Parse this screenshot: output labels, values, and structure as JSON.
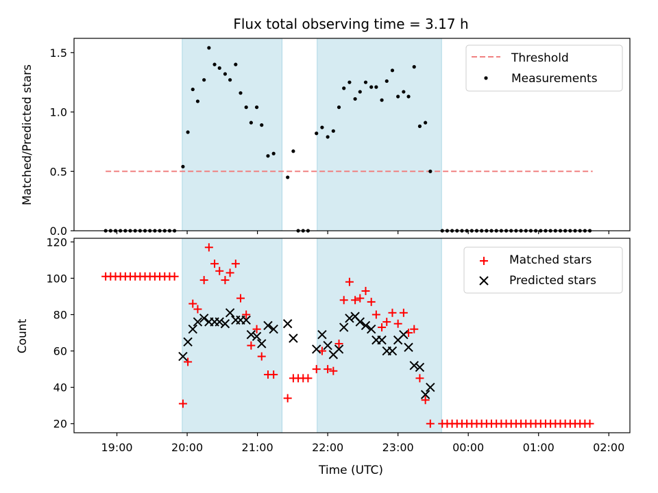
{
  "chart_data": {
    "title": "Flux total observing time = 3.17 h",
    "xlabel": "Time (UTC)",
    "x_unit": "hours since 18:00 UTC",
    "xlim": [
      0.39,
      8.3
    ],
    "xticks": [
      {
        "value": 1,
        "label": "19:00"
      },
      {
        "value": 2,
        "label": "20:00"
      },
      {
        "value": 3,
        "label": "21:00"
      },
      {
        "value": 4,
        "label": "22:00"
      },
      {
        "value": 5,
        "label": "23:00"
      },
      {
        "value": 6,
        "label": "00:00"
      },
      {
        "value": 7,
        "label": "01:00"
      },
      {
        "value": 8,
        "label": "02:00"
      }
    ],
    "shaded_intervals": [
      [
        1.93,
        3.35
      ],
      [
        3.85,
        5.62
      ]
    ],
    "shade_color": "#add8e6",
    "top": {
      "type": "scatter",
      "ylabel": "Matched/Predicted stars",
      "ylim": [
        0,
        1.62
      ],
      "yticks": [
        {
          "value": 0.0,
          "label": "0.0"
        },
        {
          "value": 0.5,
          "label": "0.5"
        },
        {
          "value": 1.0,
          "label": "1.0"
        },
        {
          "value": 1.5,
          "label": "1.5"
        }
      ],
      "threshold": {
        "name": "Threshold",
        "y": 0.5,
        "x_range": [
          0.84,
          7.77
        ],
        "color": "#f08080"
      },
      "measurements": {
        "name": "Measurements",
        "color": "#000000",
        "points": [
          [
            0.84,
            0
          ],
          [
            0.91,
            0
          ],
          [
            0.98,
            0
          ],
          [
            1.05,
            0
          ],
          [
            1.12,
            0
          ],
          [
            1.19,
            0
          ],
          [
            1.26,
            0
          ],
          [
            1.33,
            0
          ],
          [
            1.4,
            0
          ],
          [
            1.47,
            0
          ],
          [
            1.54,
            0
          ],
          [
            1.61,
            0
          ],
          [
            1.68,
            0
          ],
          [
            1.75,
            0
          ],
          [
            1.82,
            0
          ],
          [
            1.94,
            0.54
          ],
          [
            2.01,
            0.83
          ],
          [
            2.08,
            1.19
          ],
          [
            2.15,
            1.09
          ],
          [
            2.24,
            1.27
          ],
          [
            2.31,
            1.54
          ],
          [
            2.39,
            1.4
          ],
          [
            2.46,
            1.37
          ],
          [
            2.54,
            1.32
          ],
          [
            2.61,
            1.27
          ],
          [
            2.69,
            1.4
          ],
          [
            2.76,
            1.16
          ],
          [
            2.84,
            1.04
          ],
          [
            2.91,
            0.91
          ],
          [
            2.99,
            1.04
          ],
          [
            3.06,
            0.89
          ],
          [
            3.15,
            0.63
          ],
          [
            3.23,
            0.65
          ],
          [
            3.43,
            0.45
          ],
          [
            3.51,
            0.67
          ],
          [
            3.58,
            0
          ],
          [
            3.65,
            0
          ],
          [
            3.72,
            0
          ],
          [
            3.84,
            0.82
          ],
          [
            3.92,
            0.87
          ],
          [
            4.0,
            0.79
          ],
          [
            4.08,
            0.84
          ],
          [
            4.16,
            1.04
          ],
          [
            4.23,
            1.2
          ],
          [
            4.31,
            1.25
          ],
          [
            4.39,
            1.11
          ],
          [
            4.46,
            1.17
          ],
          [
            4.54,
            1.25
          ],
          [
            4.62,
            1.21
          ],
          [
            4.69,
            1.21
          ],
          [
            4.77,
            1.1
          ],
          [
            4.84,
            1.26
          ],
          [
            4.92,
            1.35
          ],
          [
            5.0,
            1.13
          ],
          [
            5.08,
            1.17
          ],
          [
            5.15,
            1.13
          ],
          [
            5.23,
            1.38
          ],
          [
            5.31,
            0.88
          ],
          [
            5.39,
            0.91
          ],
          [
            5.46,
            0.5
          ],
          [
            5.63,
            0
          ],
          [
            5.7,
            0
          ],
          [
            5.77,
            0
          ],
          [
            5.84,
            0
          ],
          [
            5.91,
            0
          ],
          [
            5.98,
            0
          ],
          [
            6.05,
            0
          ],
          [
            6.12,
            0
          ],
          [
            6.19,
            0
          ],
          [
            6.26,
            0
          ],
          [
            6.33,
            0
          ],
          [
            6.4,
            0
          ],
          [
            6.47,
            0
          ],
          [
            6.54,
            0
          ],
          [
            6.61,
            0
          ],
          [
            6.68,
            0
          ],
          [
            6.75,
            0
          ],
          [
            6.82,
            0
          ],
          [
            6.89,
            0
          ],
          [
            6.96,
            0
          ],
          [
            7.03,
            0
          ],
          [
            7.1,
            0
          ],
          [
            7.17,
            0
          ],
          [
            7.24,
            0
          ],
          [
            7.31,
            0
          ],
          [
            7.38,
            0
          ],
          [
            7.45,
            0
          ],
          [
            7.52,
            0
          ],
          [
            7.59,
            0
          ],
          [
            7.66,
            0
          ],
          [
            7.73,
            0
          ]
        ]
      },
      "legend": {
        "position": "top-right",
        "entries": [
          "Threshold",
          "Measurements"
        ]
      }
    },
    "bottom": {
      "type": "scatter",
      "ylabel": "Count",
      "ylim": [
        15,
        122
      ],
      "yticks": [
        {
          "value": 20,
          "label": "20"
        },
        {
          "value": 40,
          "label": "40"
        },
        {
          "value": 60,
          "label": "60"
        },
        {
          "value": 80,
          "label": "80"
        },
        {
          "value": 100,
          "label": "100"
        },
        {
          "value": 120,
          "label": "120"
        }
      ],
      "series": [
        {
          "name": "Matched stars",
          "marker": "plus",
          "color": "#ff0000",
          "points": [
            [
              0.84,
              101
            ],
            [
              0.91,
              101
            ],
            [
              0.98,
              101
            ],
            [
              1.05,
              101
            ],
            [
              1.12,
              101
            ],
            [
              1.19,
              101
            ],
            [
              1.26,
              101
            ],
            [
              1.33,
              101
            ],
            [
              1.4,
              101
            ],
            [
              1.47,
              101
            ],
            [
              1.54,
              101
            ],
            [
              1.61,
              101
            ],
            [
              1.68,
              101
            ],
            [
              1.75,
              101
            ],
            [
              1.82,
              101
            ],
            [
              1.94,
              31
            ],
            [
              2.01,
              54
            ],
            [
              2.08,
              86
            ],
            [
              2.15,
              83
            ],
            [
              2.24,
              99
            ],
            [
              2.31,
              117
            ],
            [
              2.39,
              108
            ],
            [
              2.46,
              104
            ],
            [
              2.54,
              99
            ],
            [
              2.61,
              103
            ],
            [
              2.69,
              108
            ],
            [
              2.76,
              89
            ],
            [
              2.84,
              80
            ],
            [
              2.91,
              63
            ],
            [
              2.99,
              72
            ],
            [
              3.06,
              57
            ],
            [
              3.15,
              47
            ],
            [
              3.23,
              47
            ],
            [
              3.43,
              34
            ],
            [
              3.51,
              45
            ],
            [
              3.58,
              45
            ],
            [
              3.65,
              45
            ],
            [
              3.72,
              45
            ],
            [
              3.84,
              50
            ],
            [
              3.92,
              60
            ],
            [
              4.0,
              50
            ],
            [
              4.08,
              49
            ],
            [
              4.16,
              64
            ],
            [
              4.23,
              88
            ],
            [
              4.31,
              98
            ],
            [
              4.39,
              88
            ],
            [
              4.46,
              89
            ],
            [
              4.54,
              93
            ],
            [
              4.62,
              87
            ],
            [
              4.69,
              80
            ],
            [
              4.77,
              73
            ],
            [
              4.84,
              76
            ],
            [
              4.92,
              81
            ],
            [
              5.0,
              75
            ],
            [
              5.08,
              81
            ],
            [
              5.15,
              70
            ],
            [
              5.23,
              72
            ],
            [
              5.31,
              45
            ],
            [
              5.39,
              33
            ],
            [
              5.46,
              20
            ],
            [
              5.63,
              20
            ],
            [
              5.7,
              20
            ],
            [
              5.77,
              20
            ],
            [
              5.84,
              20
            ],
            [
              5.91,
              20
            ],
            [
              5.98,
              20
            ],
            [
              6.05,
              20
            ],
            [
              6.12,
              20
            ],
            [
              6.19,
              20
            ],
            [
              6.26,
              20
            ],
            [
              6.33,
              20
            ],
            [
              6.4,
              20
            ],
            [
              6.47,
              20
            ],
            [
              6.54,
              20
            ],
            [
              6.61,
              20
            ],
            [
              6.68,
              20
            ],
            [
              6.75,
              20
            ],
            [
              6.82,
              20
            ],
            [
              6.89,
              20
            ],
            [
              6.96,
              20
            ],
            [
              7.03,
              20
            ],
            [
              7.1,
              20
            ],
            [
              7.17,
              20
            ],
            [
              7.24,
              20
            ],
            [
              7.31,
              20
            ],
            [
              7.38,
              20
            ],
            [
              7.45,
              20
            ],
            [
              7.52,
              20
            ],
            [
              7.59,
              20
            ],
            [
              7.66,
              20
            ],
            [
              7.73,
              20
            ]
          ]
        },
        {
          "name": "Predicted stars",
          "marker": "x",
          "color": "#000000",
          "points": [
            [
              1.94,
              57
            ],
            [
              2.01,
              65
            ],
            [
              2.08,
              72
            ],
            [
              2.15,
              76
            ],
            [
              2.24,
              78
            ],
            [
              2.31,
              76
            ],
            [
              2.39,
              76
            ],
            [
              2.46,
              76
            ],
            [
              2.54,
              75
            ],
            [
              2.61,
              81
            ],
            [
              2.69,
              77
            ],
            [
              2.76,
              77
            ],
            [
              2.84,
              77
            ],
            [
              2.91,
              69
            ],
            [
              2.99,
              68
            ],
            [
              3.06,
              64
            ],
            [
              3.15,
              74
            ],
            [
              3.23,
              72
            ],
            [
              3.43,
              75
            ],
            [
              3.51,
              67
            ],
            [
              3.84,
              61
            ],
            [
              3.92,
              69
            ],
            [
              4.0,
              63
            ],
            [
              4.08,
              58
            ],
            [
              4.16,
              61
            ],
            [
              4.23,
              73
            ],
            [
              4.31,
              78
            ],
            [
              4.39,
              79
            ],
            [
              4.46,
              76
            ],
            [
              4.54,
              74
            ],
            [
              4.62,
              72
            ],
            [
              4.69,
              66
            ],
            [
              4.77,
              66
            ],
            [
              4.84,
              60
            ],
            [
              4.92,
              60
            ],
            [
              5.0,
              66
            ],
            [
              5.08,
              69
            ],
            [
              5.15,
              62
            ],
            [
              5.23,
              52
            ],
            [
              5.31,
              51
            ],
            [
              5.39,
              36
            ],
            [
              5.46,
              40
            ]
          ]
        }
      ],
      "legend": {
        "position": "top-right",
        "entries": [
          "Matched stars",
          "Predicted stars"
        ]
      }
    }
  }
}
